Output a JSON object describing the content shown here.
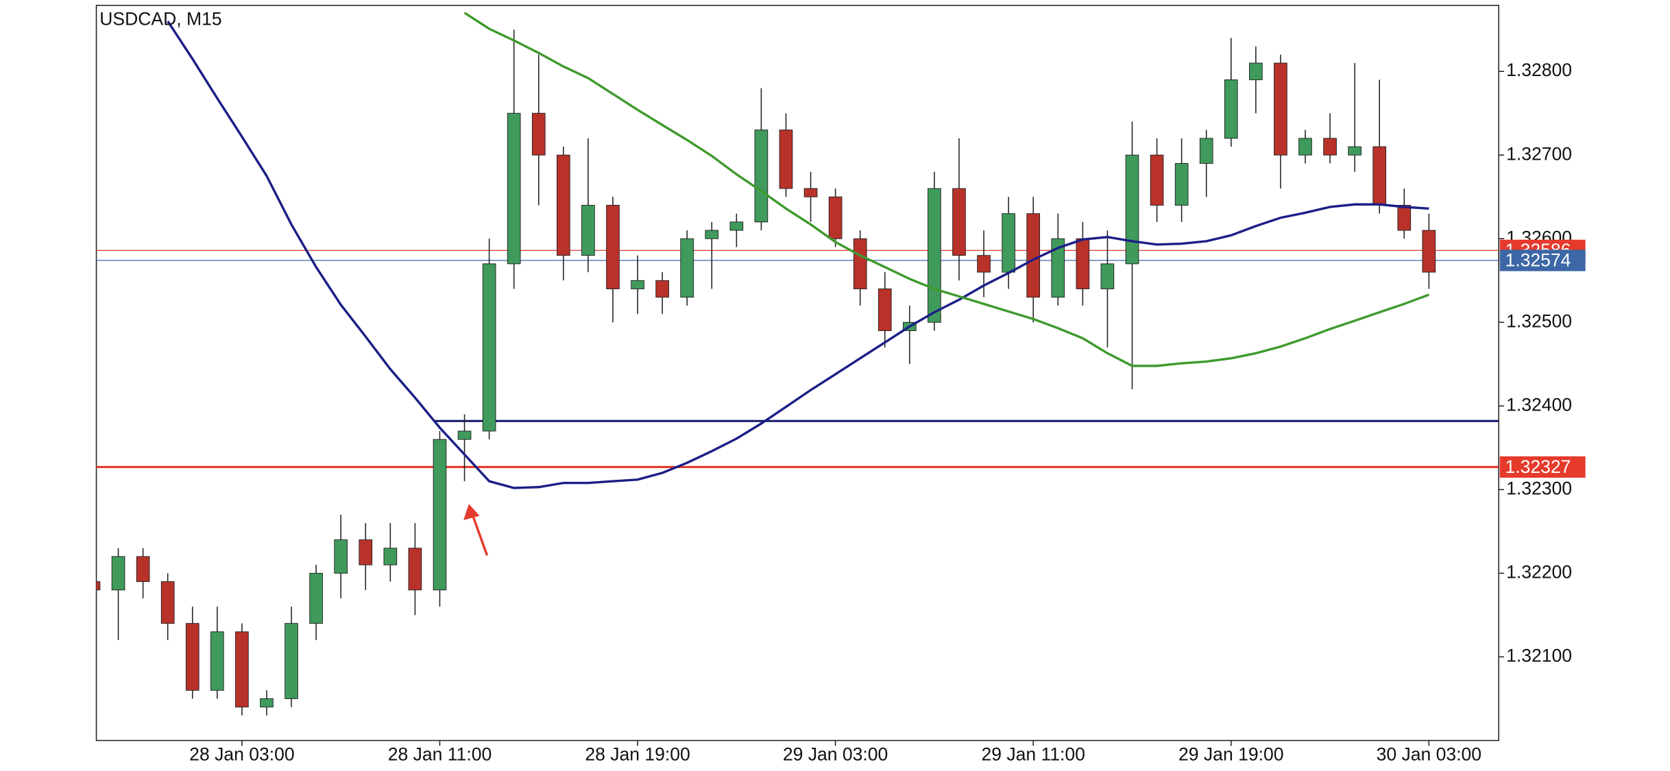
{
  "chart_data": {
    "type": "candlestick",
    "title": "USDCAD, M15",
    "categories": [
      null,
      null,
      null,
      null,
      null,
      null,
      "28 Jan 03:00",
      null,
      null,
      null,
      null,
      null,
      null,
      null,
      "28 Jan 11:00",
      null,
      null,
      null,
      null,
      null,
      null,
      null,
      "28 Jan 19:00",
      null,
      null,
      null,
      null,
      null,
      null,
      null,
      "29 Jan 03:00",
      null,
      null,
      null,
      null,
      null,
      null,
      null,
      "29 Jan 11:00",
      null,
      null,
      null,
      null,
      null,
      null,
      null,
      "29 Jan 19:00",
      null,
      null,
      null,
      null,
      null,
      null,
      null,
      "30 Jan 03:00"
    ],
    "open": [
      1.3219,
      1.3218,
      1.3222,
      1.3219,
      1.3214,
      1.3206,
      1.3213,
      1.3204,
      1.3205,
      1.3214,
      1.322,
      1.3224,
      1.3221,
      1.3223,
      1.3218,
      1.3236,
      1.3237,
      1.3257,
      1.3275,
      1.327,
      1.3258,
      1.3264,
      1.3254,
      1.3255,
      1.3253,
      1.326,
      1.3261,
      1.3262,
      1.3273,
      1.3266,
      1.3265,
      1.326,
      1.3254,
      1.3249,
      1.325,
      1.3266,
      1.3258,
      1.3256,
      1.3263,
      1.3253,
      1.326,
      1.3254,
      1.3257,
      1.327,
      1.3264,
      1.3269,
      1.3272,
      1.3279,
      1.3281,
      1.327,
      1.3272,
      1.327,
      1.3271,
      1.3264,
      1.3261
    ],
    "high": [
      1.3221,
      1.3223,
      1.3223,
      1.322,
      1.3216,
      1.3216,
      1.3214,
      1.3206,
      1.3216,
      1.3221,
      1.3227,
      1.3226,
      1.3226,
      1.3226,
      1.3237,
      1.3239,
      1.326,
      1.3285,
      1.3282,
      1.3271,
      1.3272,
      1.3265,
      1.3258,
      1.3256,
      1.3261,
      1.3262,
      1.3263,
      1.3278,
      1.3275,
      1.3268,
      1.3266,
      1.3261,
      1.3256,
      1.3252,
      1.3268,
      1.3272,
      1.3261,
      1.3265,
      1.3265,
      1.3263,
      1.3262,
      1.3261,
      1.3274,
      1.3272,
      1.3272,
      1.3273,
      1.3284,
      1.3283,
      1.3282,
      1.3273,
      1.3275,
      1.3281,
      1.3279,
      1.3266,
      1.3263
    ],
    "low": [
      1.3216,
      1.3212,
      1.3217,
      1.3212,
      1.3205,
      1.3205,
      1.3203,
      1.3203,
      1.3204,
      1.3212,
      1.3217,
      1.3218,
      1.3219,
      1.3215,
      1.3216,
      1.3231,
      1.3236,
      1.3254,
      1.3264,
      1.3255,
      1.3256,
      1.325,
      1.3251,
      1.3251,
      1.3252,
      1.3254,
      1.3259,
      1.3261,
      1.3265,
      1.3262,
      1.3259,
      1.3252,
      1.3247,
      1.3245,
      1.3249,
      1.3255,
      1.3253,
      1.3254,
      1.325,
      1.3252,
      1.3252,
      1.3247,
      1.3242,
      1.3262,
      1.3262,
      1.3265,
      1.3271,
      1.3275,
      1.3266,
      1.3269,
      1.3269,
      1.3268,
      1.3263,
      1.326,
      1.3254
    ],
    "close": [
      1.3218,
      1.3222,
      1.3219,
      1.3214,
      1.3206,
      1.3213,
      1.3204,
      1.3205,
      1.3214,
      1.322,
      1.3224,
      1.3221,
      1.3223,
      1.3218,
      1.3236,
      1.3237,
      1.3257,
      1.3275,
      1.327,
      1.3258,
      1.3264,
      1.3254,
      1.3255,
      1.3253,
      1.326,
      1.3261,
      1.3262,
      1.3273,
      1.3266,
      1.3265,
      1.326,
      1.3254,
      1.3249,
      1.325,
      1.3266,
      1.3258,
      1.3256,
      1.3263,
      1.3253,
      1.326,
      1.3254,
      1.3257,
      1.327,
      1.3264,
      1.3269,
      1.3272,
      1.3279,
      1.3281,
      1.327,
      1.3272,
      1.327,
      1.3271,
      1.3264,
      1.3261,
      1.3256
    ],
    "up_color": "#3f9a5c",
    "down_color": "#b8322a",
    "lines": [
      {
        "color": "#1c1f86",
        "values": [
          null,
          null,
          null,
          1.3286,
          1.32815,
          1.32768,
          1.32722,
          1.32675,
          1.32617,
          1.32566,
          1.32521,
          1.32483,
          1.32444,
          1.3241,
          1.32374,
          1.32342,
          1.3231,
          1.32302,
          1.32303,
          1.32308,
          1.32308,
          1.3231,
          1.32312,
          1.3232,
          1.32332,
          1.32346,
          1.32361,
          1.32379,
          1.32399,
          1.32419,
          1.32438,
          1.32457,
          1.32476,
          1.32495,
          1.32512,
          1.32527,
          1.32544,
          1.32559,
          1.32575,
          1.32589,
          1.32599,
          1.32602,
          1.32597,
          1.32593,
          1.32594,
          1.32597,
          1.32604,
          1.32615,
          1.32625,
          1.32631,
          1.32638,
          1.32641,
          1.32641,
          1.32638,
          1.32636
        ]
      },
      {
        "color": "#3f9a2e",
        "values": [
          null,
          null,
          null,
          null,
          null,
          null,
          null,
          null,
          null,
          null,
          null,
          null,
          null,
          null,
          null,
          1.3287,
          1.32851,
          1.32837,
          1.32822,
          1.32806,
          1.32792,
          1.32773,
          1.32754,
          1.32736,
          1.32718,
          1.32699,
          1.32677,
          1.32657,
          1.32636,
          1.32617,
          1.32596,
          1.3258,
          1.32566,
          1.32552,
          1.3254,
          1.32531,
          1.32522,
          1.32513,
          1.32504,
          1.32493,
          1.32481,
          1.32463,
          1.32448,
          1.32448,
          1.32451,
          1.32453,
          1.32457,
          1.32463,
          1.32471,
          1.32481,
          1.32492,
          1.32502,
          1.32512,
          1.32522,
          1.32533
        ]
      }
    ],
    "levels": [
      {
        "value": 1.32382,
        "color": "#1c1f6e",
        "style": "thick"
      },
      {
        "value": 1.32327,
        "label": "1.32327",
        "color": "#e53a2c",
        "style": "thick"
      },
      {
        "value": 1.32586,
        "label": "1.32586",
        "color": "#e53a2c",
        "style": "thin"
      },
      {
        "value": 1.32574,
        "label": "1.32574",
        "color": "#3d67a6",
        "style": "thin"
      }
    ],
    "ylim": [
      1.32,
      1.32879
    ],
    "yticks": [
      {
        "value": 1.321,
        "label": "1.32100"
      },
      {
        "value": 1.322,
        "label": "1.32200"
      },
      {
        "value": 1.323,
        "label": "1.32300"
      },
      {
        "value": 1.324,
        "label": "1.32400"
      },
      {
        "value": 1.325,
        "label": "1.32500"
      },
      {
        "value": 1.326,
        "label": "1.32600"
      },
      {
        "value": 1.327,
        "label": "1.32700"
      },
      {
        "value": 1.328,
        "label": "1.32800"
      }
    ],
    "grid": false
  }
}
